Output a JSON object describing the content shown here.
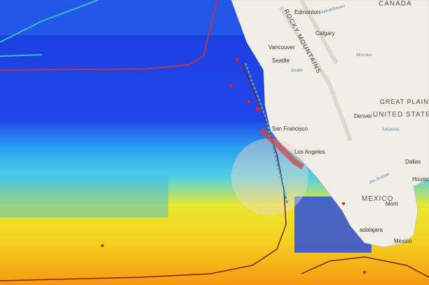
{
  "map": {
    "labels": {
      "canada": "CANADA",
      "edmonton": "Edmonton",
      "saskatchewan": "Saskatchewan",
      "calgary": "Calgary",
      "rocky_mountains": "ROCKY MOUNTAINS",
      "vancouver": "Vancouver",
      "seattle": "Seattle",
      "missouri": "Missouri",
      "snake": "Snake",
      "great_plains": "GREAT PLAINS",
      "united_states": "UNITED STATES",
      "denver": "Denver",
      "arkansas": "Arkansas",
      "san_francisco": "San Francisco",
      "los_angeles": "Los Angeles",
      "dallas": "Dallas",
      "rio_grande": "Rio Grande",
      "houston": "Houston",
      "mexico": "MEXICO",
      "monterrey": "Mont",
      "guadalajara": "adalajara",
      "mexico_city": "Mexico"
    }
  }
}
